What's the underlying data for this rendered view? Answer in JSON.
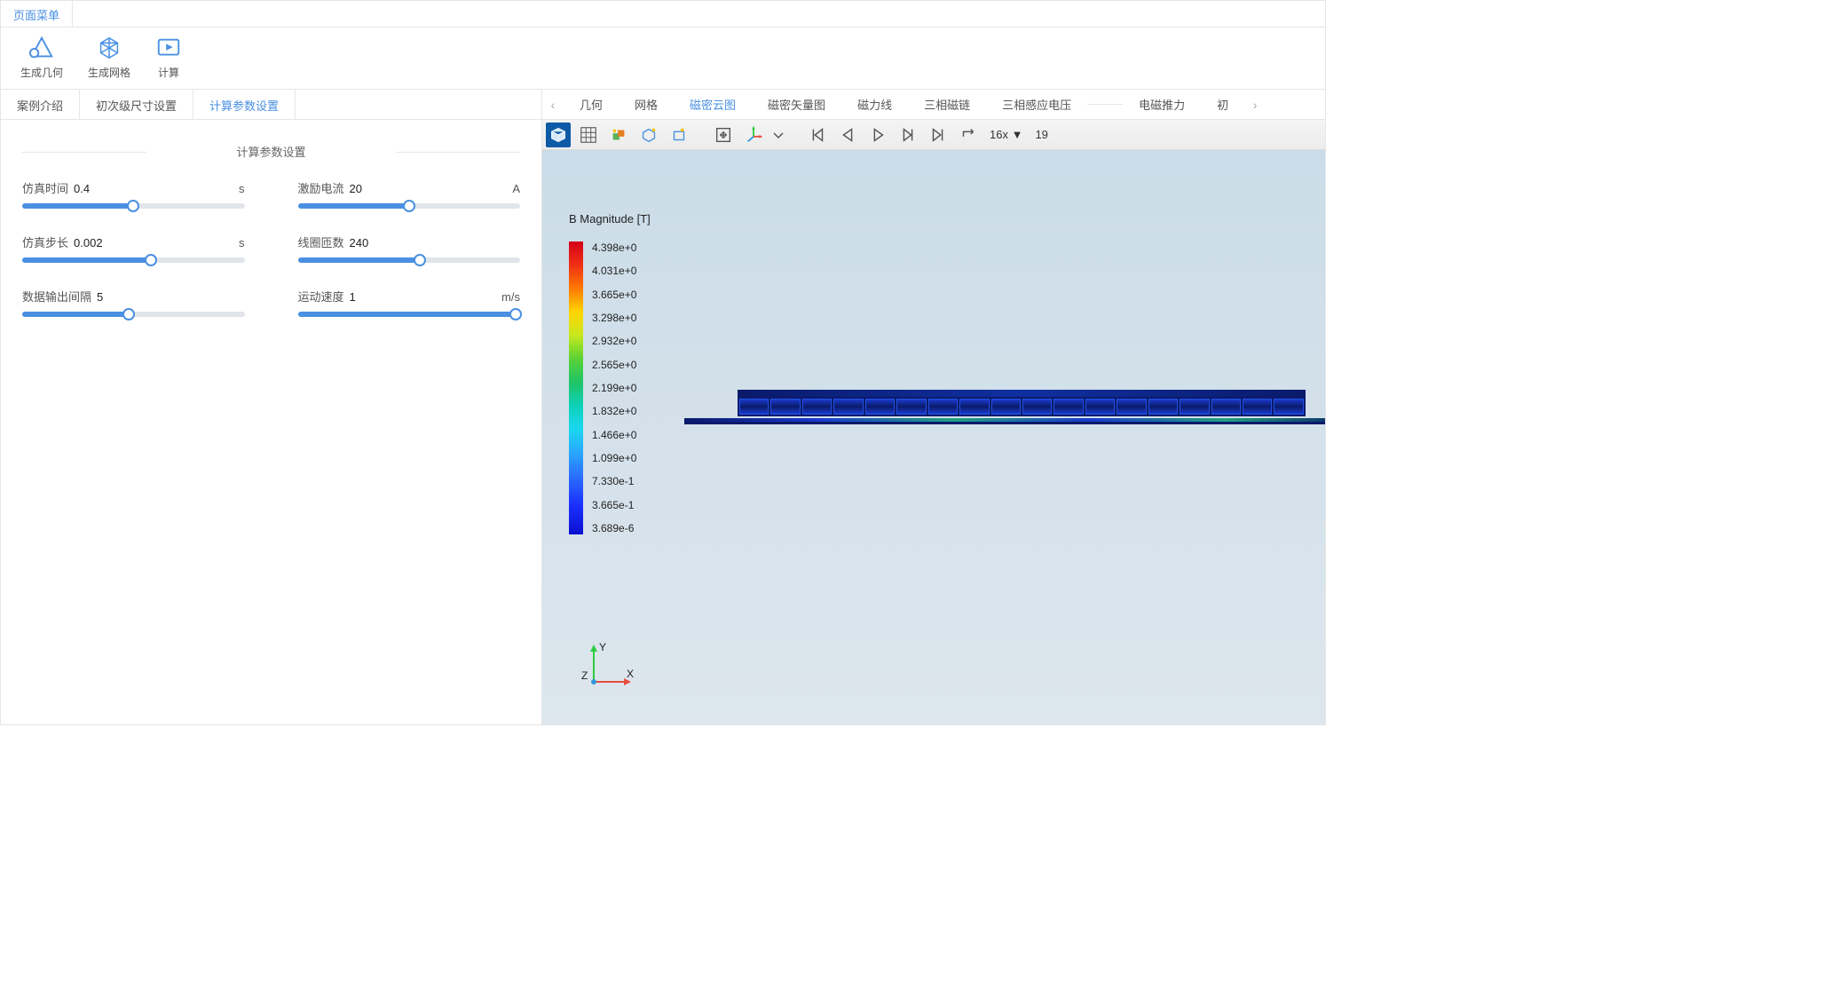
{
  "top_menu": {
    "label": "页面菜单"
  },
  "ribbon": {
    "generate_geometry": "生成几何",
    "generate_mesh": "生成网格",
    "compute": "计算"
  },
  "left_tabs": {
    "intro": "案例介绍",
    "dimensions": "初次级尺寸设置",
    "params": "计算参数设置"
  },
  "params_section_title": "计算参数设置",
  "params": {
    "sim_time": {
      "label": "仿真时间",
      "value": "0.4",
      "unit": "s",
      "fill": 50
    },
    "current": {
      "label": "激励电流",
      "value": "20",
      "unit": "A",
      "fill": 50
    },
    "sim_step": {
      "label": "仿真步长",
      "value": "0.002",
      "unit": "s",
      "fill": 58
    },
    "turns": {
      "label": "线圈匝数",
      "value": "240",
      "unit": "",
      "fill": 55
    },
    "out_step": {
      "label": "数据输出间隔",
      "value": "5",
      "unit": "",
      "fill": 48
    },
    "speed": {
      "label": "运动速度",
      "value": "1",
      "unit": "m/s",
      "fill": 98
    }
  },
  "right_tabs": {
    "geometry": "几何",
    "mesh": "网格",
    "b_cloud": "磁密云图",
    "b_vector": "磁密矢量图",
    "field_lines": "磁力线",
    "flux": "三相磁链",
    "emf": "三相感应电压",
    "thrust": "电磁推力",
    "phase": "初"
  },
  "playback": {
    "speed": "16x",
    "frame": "19"
  },
  "legend": {
    "title": "B Magnitude [T]",
    "labels": [
      "4.398e+0",
      "4.031e+0",
      "3.665e+0",
      "3.298e+0",
      "2.932e+0",
      "2.565e+0",
      "2.199e+0",
      "1.832e+0",
      "1.466e+0",
      "1.099e+0",
      "7.330e-1",
      "3.665e-1",
      "3.689e-6"
    ],
    "stops": [
      {
        "p": 0,
        "c": "#d4001a"
      },
      {
        "p": 8,
        "c": "#f03015"
      },
      {
        "p": 16,
        "c": "#ff7a00"
      },
      {
        "p": 24,
        "c": "#ffd400"
      },
      {
        "p": 32,
        "c": "#c8e81e"
      },
      {
        "p": 40,
        "c": "#5ad235"
      },
      {
        "p": 48,
        "c": "#1fc466"
      },
      {
        "p": 56,
        "c": "#0ed0b8"
      },
      {
        "p": 64,
        "c": "#1ad8f0"
      },
      {
        "p": 72,
        "c": "#2aa8ff"
      },
      {
        "p": 80,
        "c": "#2a70ff"
      },
      {
        "p": 90,
        "c": "#1a30ff"
      },
      {
        "p": 100,
        "c": "#0a10d0"
      }
    ]
  },
  "triad": {
    "x": "X",
    "y": "Y",
    "z": "Z"
  },
  "motor": {
    "slots": 18
  },
  "colors": {
    "accent": "#4a90e2",
    "toolbar_active": "#0d5aa7"
  }
}
